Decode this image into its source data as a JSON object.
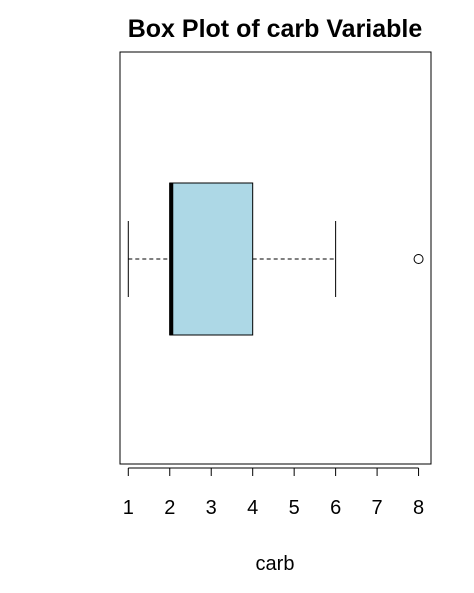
{
  "chart_data": {
    "type": "boxplot",
    "orientation": "horizontal",
    "title": "Box Plot of carb Variable",
    "xlabel": "carb",
    "ylabel": "",
    "xlim": [
      0.8,
      8.3
    ],
    "xticks": [
      1,
      2,
      3,
      4,
      5,
      6,
      7,
      8
    ],
    "xtick_labels": [
      "1",
      "2",
      "3",
      "4",
      "5",
      "6",
      "7",
      "8"
    ],
    "grid": false,
    "box": {
      "whisker_low": 1,
      "q1": 2,
      "median": 2,
      "q3": 4,
      "whisker_high": 6,
      "outliers": [
        8
      ]
    },
    "colors": {
      "box_fill": "#add8e6",
      "line": "#000000"
    }
  }
}
